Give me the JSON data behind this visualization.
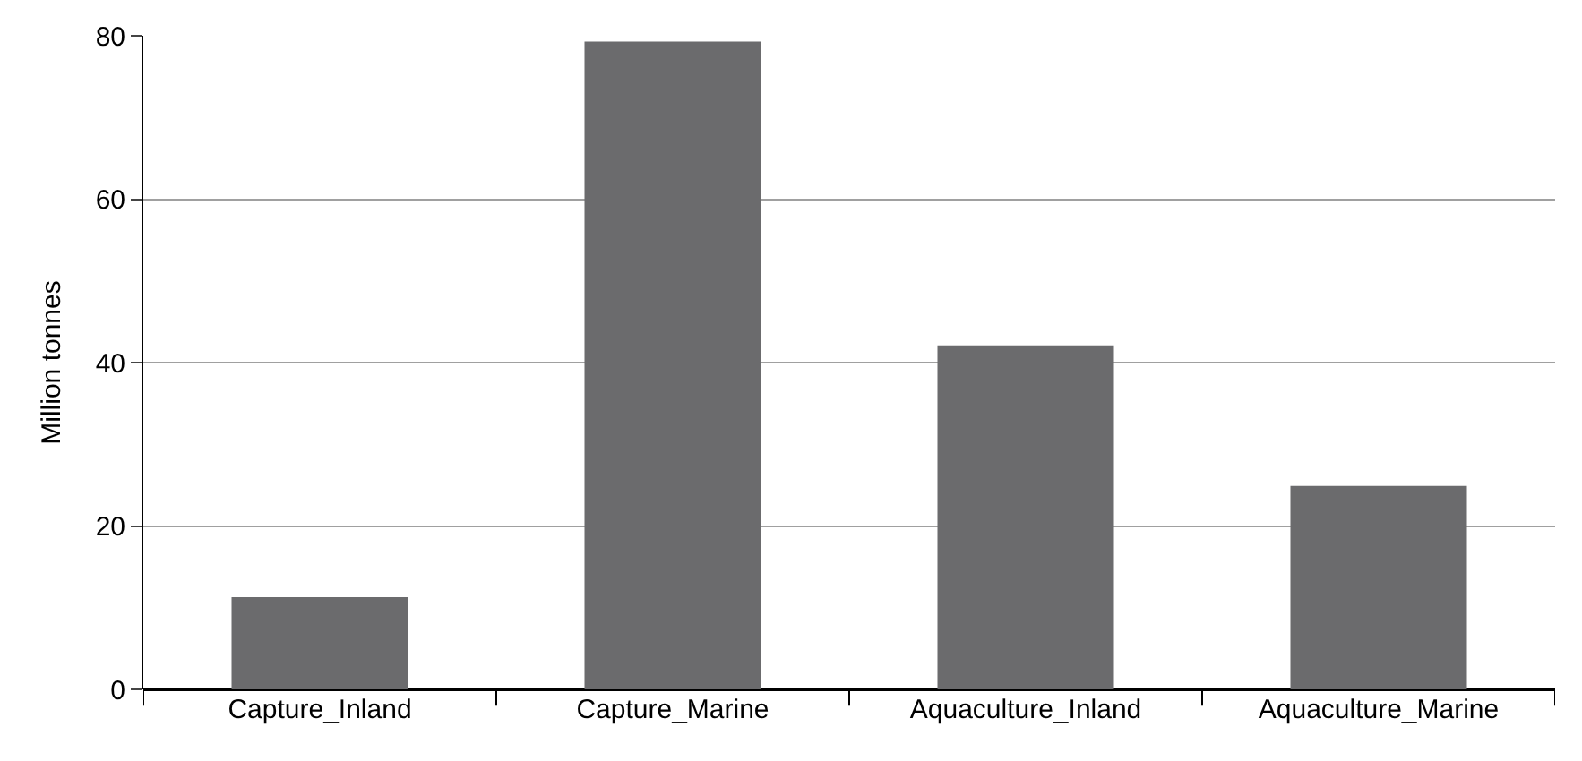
{
  "chart_data": {
    "type": "bar",
    "ylabel": "Million tonnes",
    "categories": [
      "Capture_Inland",
      "Capture_Marine",
      "Aquaculture_Inland",
      "Aquaculture_Marine"
    ],
    "values": [
      11.3,
      79.3,
      42.1,
      24.9
    ],
    "color": "#6b6b6d",
    "ylim": [
      0,
      80
    ],
    "yticks": [
      0,
      20,
      40,
      60,
      80
    ],
    "grid": "y",
    "legend": false
  }
}
